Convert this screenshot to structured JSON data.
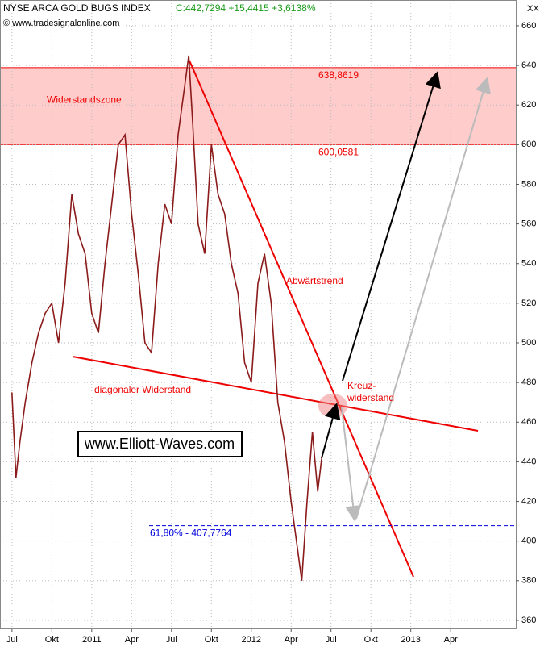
{
  "chart_data": {
    "type": "line",
    "title": "NYSE ARCA GOLD BUGS INDEX",
    "quote": "C:442,7294 +15,4415 +3,6138%",
    "source": "© www.tradesignalonline.com",
    "corner_label": "XX",
    "watermark": "www.Elliott-Waves.com",
    "color": "#8b1a1a",
    "x": [
      0,
      0.3,
      0.6,
      1,
      1.5,
      2,
      2.5,
      3,
      3.5,
      4,
      4.5,
      5,
      5.5,
      6,
      6.5,
      7,
      7.5,
      8,
      8.5,
      9,
      9.5,
      10,
      10.5,
      11,
      11.5,
      12,
      12.5,
      13,
      13.3,
      13.6,
      14,
      14.5,
      15,
      15.5,
      16,
      16.5,
      17,
      17.5,
      18,
      18.5,
      19,
      19.5,
      20,
      20.5,
      21,
      21.5,
      21.8,
      22.2,
      22.6,
      23,
      23.3
    ],
    "values": [
      475,
      432,
      450,
      470,
      490,
      505,
      515,
      520,
      500,
      530,
      575,
      555,
      545,
      515,
      505,
      540,
      570,
      600,
      605,
      565,
      535,
      500,
      495,
      540,
      570,
      560,
      605,
      630,
      645,
      610,
      560,
      545,
      600,
      575,
      565,
      540,
      525,
      490,
      480,
      530,
      545,
      520,
      470,
      450,
      420,
      395,
      380,
      420,
      455,
      425,
      442
    ],
    "xlim": [
      -0.9,
      37.9
    ],
    "ylim": [
      355.5,
      673
    ],
    "xticks": [
      {
        "value": 0,
        "label": "Jul"
      },
      {
        "value": 3,
        "label": "Okt"
      },
      {
        "value": 6,
        "label": "2011"
      },
      {
        "value": 9,
        "label": "Apr"
      },
      {
        "value": 12,
        "label": "Jul"
      },
      {
        "value": 15,
        "label": "Okt"
      },
      {
        "value": 18,
        "label": "2012"
      },
      {
        "value": 21,
        "label": "Apr"
      },
      {
        "value": 24,
        "label": "Jul"
      },
      {
        "value": 27,
        "label": "Okt"
      },
      {
        "value": 30,
        "label": "2013"
      },
      {
        "value": 33,
        "label": "Apr"
      }
    ],
    "yticks": [
      360,
      380,
      400,
      420,
      440,
      460,
      480,
      500,
      520,
      540,
      560,
      580,
      600,
      620,
      640,
      660
    ],
    "grid": true,
    "resistance_zone": {
      "low": {
        "value": 600.0581,
        "label": "600,0581"
      },
      "high": {
        "value": 638.8619,
        "label": "638,8619"
      },
      "label": "Widerstandszone",
      "color": "#ffcccc"
    },
    "fib_level": {
      "value": 407.7764,
      "label": "61,80% - 407,7764",
      "color": "#0000dd"
    },
    "annotations": {
      "downtrend": "Abwärtstrend",
      "diagonal": "diagonaler Widerstand",
      "cross": [
        "Kreuz-",
        "widerstand"
      ]
    }
  }
}
